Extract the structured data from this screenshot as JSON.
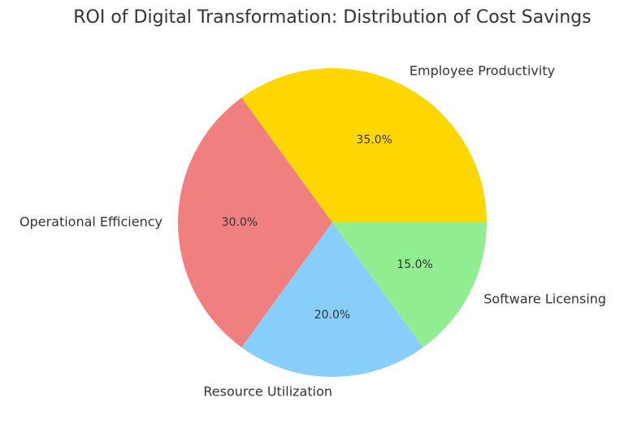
{
  "chart_data": {
    "type": "pie",
    "title": "ROI of Digital Transformation: Distribution of Cost Savings",
    "slices": [
      {
        "label": "Employee Productivity",
        "value": 35.0,
        "pct_label": "35.0%",
        "color": "#FFD700"
      },
      {
        "label": "Operational Efficiency",
        "value": 30.0,
        "pct_label": "30.0%",
        "color": "#F08080"
      },
      {
        "label": "Resource Utilization",
        "value": 20.0,
        "pct_label": "20.0%",
        "color": "#87CEFA"
      },
      {
        "label": "Software Licensing",
        "value": 15.0,
        "pct_label": "15.0%",
        "color": "#90EE90"
      }
    ],
    "start_angle_deg": 0,
    "direction": "counterclockwise",
    "legend": "none"
  }
}
